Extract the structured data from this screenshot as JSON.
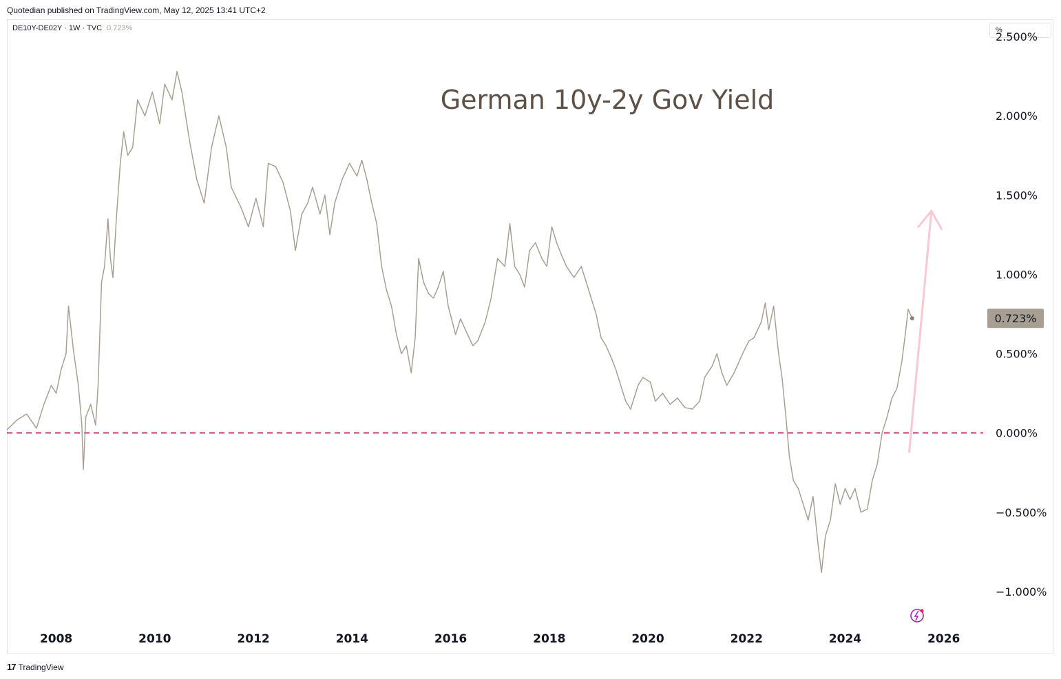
{
  "header": {
    "published_line": "Quotedian published on TradingView.com, May 12, 2025 13:41 UTC+2"
  },
  "legend": {
    "symbol": "DE10Y-DE02Y · 1W · TVC",
    "last_value": "0.723%"
  },
  "price_scale": {
    "unit_label": "%",
    "current_value_label": "0.723%"
  },
  "footer": {
    "logo_mark": "17",
    "logo_text": "TradingView"
  },
  "colors": {
    "series": "#a89f94",
    "zero_line": "#c2185b",
    "arrow": "#f8c8d4",
    "title": "#5d5046",
    "price_badge": "#a89f94"
  },
  "icons": [
    "lightning-icon"
  ],
  "chart_data": {
    "type": "line",
    "title": "German 10y-2y Gov Yield",
    "xlabel": "",
    "ylabel": "",
    "xlim": [
      2007.0,
      2026.8
    ],
    "ylim": [
      -1.2,
      2.6
    ],
    "x_ticks": [
      2008,
      2010,
      2012,
      2014,
      2016,
      2018,
      2020,
      2022,
      2024,
      2026
    ],
    "y_ticks": [
      2.5,
      2.0,
      1.5,
      1.0,
      0.5,
      0.0,
      -0.5,
      -1.0
    ],
    "y_tick_labels": [
      "2.500%",
      "2.000%",
      "1.500%",
      "1.000%",
      "0.500%",
      "0.000%",
      "−0.500%",
      "−1.000%"
    ],
    "reference_line": {
      "y": 0.0,
      "style": "dashed"
    },
    "annotation_arrow": {
      "from": [
        2025.3,
        -0.12
      ],
      "to": [
        2025.75,
        1.4
      ]
    },
    "last_point": [
      2025.36,
      0.723
    ],
    "grid": false,
    "series": [
      {
        "points": [
          [
            2007.0,
            0.02
          ],
          [
            2007.2,
            0.08
          ],
          [
            2007.4,
            0.12
          ],
          [
            2007.6,
            0.03
          ],
          [
            2007.75,
            0.18
          ],
          [
            2007.9,
            0.3
          ],
          [
            2008.0,
            0.25
          ],
          [
            2008.1,
            0.4
          ],
          [
            2008.2,
            0.5
          ],
          [
            2008.25,
            0.8
          ],
          [
            2008.35,
            0.52
          ],
          [
            2008.45,
            0.3
          ],
          [
            2008.52,
            0.05
          ],
          [
            2008.55,
            -0.23
          ],
          [
            2008.6,
            0.1
          ],
          [
            2008.7,
            0.18
          ],
          [
            2008.8,
            0.05
          ],
          [
            2008.85,
            0.3
          ],
          [
            2008.92,
            0.95
          ],
          [
            2008.98,
            1.05
          ],
          [
            2009.05,
            1.35
          ],
          [
            2009.1,
            1.1
          ],
          [
            2009.15,
            0.98
          ],
          [
            2009.22,
            1.35
          ],
          [
            2009.3,
            1.7
          ],
          [
            2009.37,
            1.9
          ],
          [
            2009.45,
            1.75
          ],
          [
            2009.55,
            1.8
          ],
          [
            2009.65,
            2.1
          ],
          [
            2009.8,
            2.0
          ],
          [
            2009.95,
            2.15
          ],
          [
            2010.1,
            1.95
          ],
          [
            2010.2,
            2.2
          ],
          [
            2010.35,
            2.1
          ],
          [
            2010.45,
            2.28
          ],
          [
            2010.55,
            2.15
          ],
          [
            2010.7,
            1.85
          ],
          [
            2010.85,
            1.6
          ],
          [
            2011.0,
            1.45
          ],
          [
            2011.15,
            1.8
          ],
          [
            2011.3,
            2.0
          ],
          [
            2011.45,
            1.8
          ],
          [
            2011.55,
            1.55
          ],
          [
            2011.75,
            1.42
          ],
          [
            2011.9,
            1.3
          ],
          [
            2012.05,
            1.48
          ],
          [
            2012.2,
            1.3
          ],
          [
            2012.3,
            1.7
          ],
          [
            2012.45,
            1.68
          ],
          [
            2012.6,
            1.58
          ],
          [
            2012.75,
            1.4
          ],
          [
            2012.85,
            1.15
          ],
          [
            2012.98,
            1.38
          ],
          [
            2013.1,
            1.45
          ],
          [
            2013.2,
            1.55
          ],
          [
            2013.35,
            1.38
          ],
          [
            2013.45,
            1.5
          ],
          [
            2013.55,
            1.25
          ],
          [
            2013.65,
            1.45
          ],
          [
            2013.8,
            1.6
          ],
          [
            2013.95,
            1.7
          ],
          [
            2014.1,
            1.62
          ],
          [
            2014.2,
            1.72
          ],
          [
            2014.3,
            1.6
          ],
          [
            2014.4,
            1.45
          ],
          [
            2014.5,
            1.32
          ],
          [
            2014.6,
            1.05
          ],
          [
            2014.7,
            0.9
          ],
          [
            2014.8,
            0.8
          ],
          [
            2014.9,
            0.62
          ],
          [
            2015.0,
            0.5
          ],
          [
            2015.1,
            0.55
          ],
          [
            2015.2,
            0.38
          ],
          [
            2015.28,
            0.6
          ],
          [
            2015.35,
            1.1
          ],
          [
            2015.45,
            0.95
          ],
          [
            2015.55,
            0.88
          ],
          [
            2015.65,
            0.85
          ],
          [
            2015.75,
            0.92
          ],
          [
            2015.85,
            1.02
          ],
          [
            2015.95,
            0.8
          ],
          [
            2016.1,
            0.62
          ],
          [
            2016.2,
            0.72
          ],
          [
            2016.3,
            0.65
          ],
          [
            2016.45,
            0.55
          ],
          [
            2016.55,
            0.58
          ],
          [
            2016.7,
            0.7
          ],
          [
            2016.82,
            0.85
          ],
          [
            2016.95,
            1.1
          ],
          [
            2017.1,
            1.05
          ],
          [
            2017.2,
            1.32
          ],
          [
            2017.3,
            1.05
          ],
          [
            2017.4,
            1.0
          ],
          [
            2017.5,
            0.92
          ],
          [
            2017.6,
            1.15
          ],
          [
            2017.72,
            1.2
          ],
          [
            2017.85,
            1.1
          ],
          [
            2017.95,
            1.05
          ],
          [
            2018.05,
            1.3
          ],
          [
            2018.15,
            1.2
          ],
          [
            2018.25,
            1.12
          ],
          [
            2018.35,
            1.05
          ],
          [
            2018.5,
            0.98
          ],
          [
            2018.65,
            1.05
          ],
          [
            2018.75,
            0.95
          ],
          [
            2018.85,
            0.85
          ],
          [
            2018.95,
            0.75
          ],
          [
            2019.05,
            0.6
          ],
          [
            2019.15,
            0.55
          ],
          [
            2019.25,
            0.48
          ],
          [
            2019.35,
            0.4
          ],
          [
            2019.45,
            0.3
          ],
          [
            2019.55,
            0.2
          ],
          [
            2019.65,
            0.15
          ],
          [
            2019.8,
            0.3
          ],
          [
            2019.9,
            0.35
          ],
          [
            2020.05,
            0.32
          ],
          [
            2020.15,
            0.2
          ],
          [
            2020.3,
            0.25
          ],
          [
            2020.45,
            0.18
          ],
          [
            2020.6,
            0.22
          ],
          [
            2020.75,
            0.16
          ],
          [
            2020.9,
            0.15
          ],
          [
            2021.05,
            0.2
          ],
          [
            2021.15,
            0.35
          ],
          [
            2021.3,
            0.42
          ],
          [
            2021.4,
            0.5
          ],
          [
            2021.5,
            0.38
          ],
          [
            2021.6,
            0.3
          ],
          [
            2021.75,
            0.38
          ],
          [
            2021.85,
            0.45
          ],
          [
            2021.95,
            0.52
          ],
          [
            2022.05,
            0.58
          ],
          [
            2022.15,
            0.6
          ],
          [
            2022.3,
            0.7
          ],
          [
            2022.38,
            0.82
          ],
          [
            2022.45,
            0.65
          ],
          [
            2022.55,
            0.8
          ],
          [
            2022.65,
            0.5
          ],
          [
            2022.72,
            0.35
          ],
          [
            2022.8,
            0.1
          ],
          [
            2022.87,
            -0.15
          ],
          [
            2022.95,
            -0.3
          ],
          [
            2023.05,
            -0.35
          ],
          [
            2023.15,
            -0.45
          ],
          [
            2023.25,
            -0.55
          ],
          [
            2023.35,
            -0.4
          ],
          [
            2023.45,
            -0.7
          ],
          [
            2023.52,
            -0.88
          ],
          [
            2023.6,
            -0.65
          ],
          [
            2023.7,
            -0.55
          ],
          [
            2023.8,
            -0.32
          ],
          [
            2023.9,
            -0.45
          ],
          [
            2024.0,
            -0.35
          ],
          [
            2024.1,
            -0.42
          ],
          [
            2024.2,
            -0.35
          ],
          [
            2024.32,
            -0.5
          ],
          [
            2024.45,
            -0.48
          ],
          [
            2024.55,
            -0.3
          ],
          [
            2024.65,
            -0.2
          ],
          [
            2024.75,
            0.0
          ],
          [
            2024.85,
            0.1
          ],
          [
            2024.95,
            0.22
          ],
          [
            2025.05,
            0.28
          ],
          [
            2025.15,
            0.45
          ],
          [
            2025.22,
            0.62
          ],
          [
            2025.28,
            0.78
          ],
          [
            2025.32,
            0.75
          ],
          [
            2025.36,
            0.723
          ]
        ]
      }
    ]
  }
}
